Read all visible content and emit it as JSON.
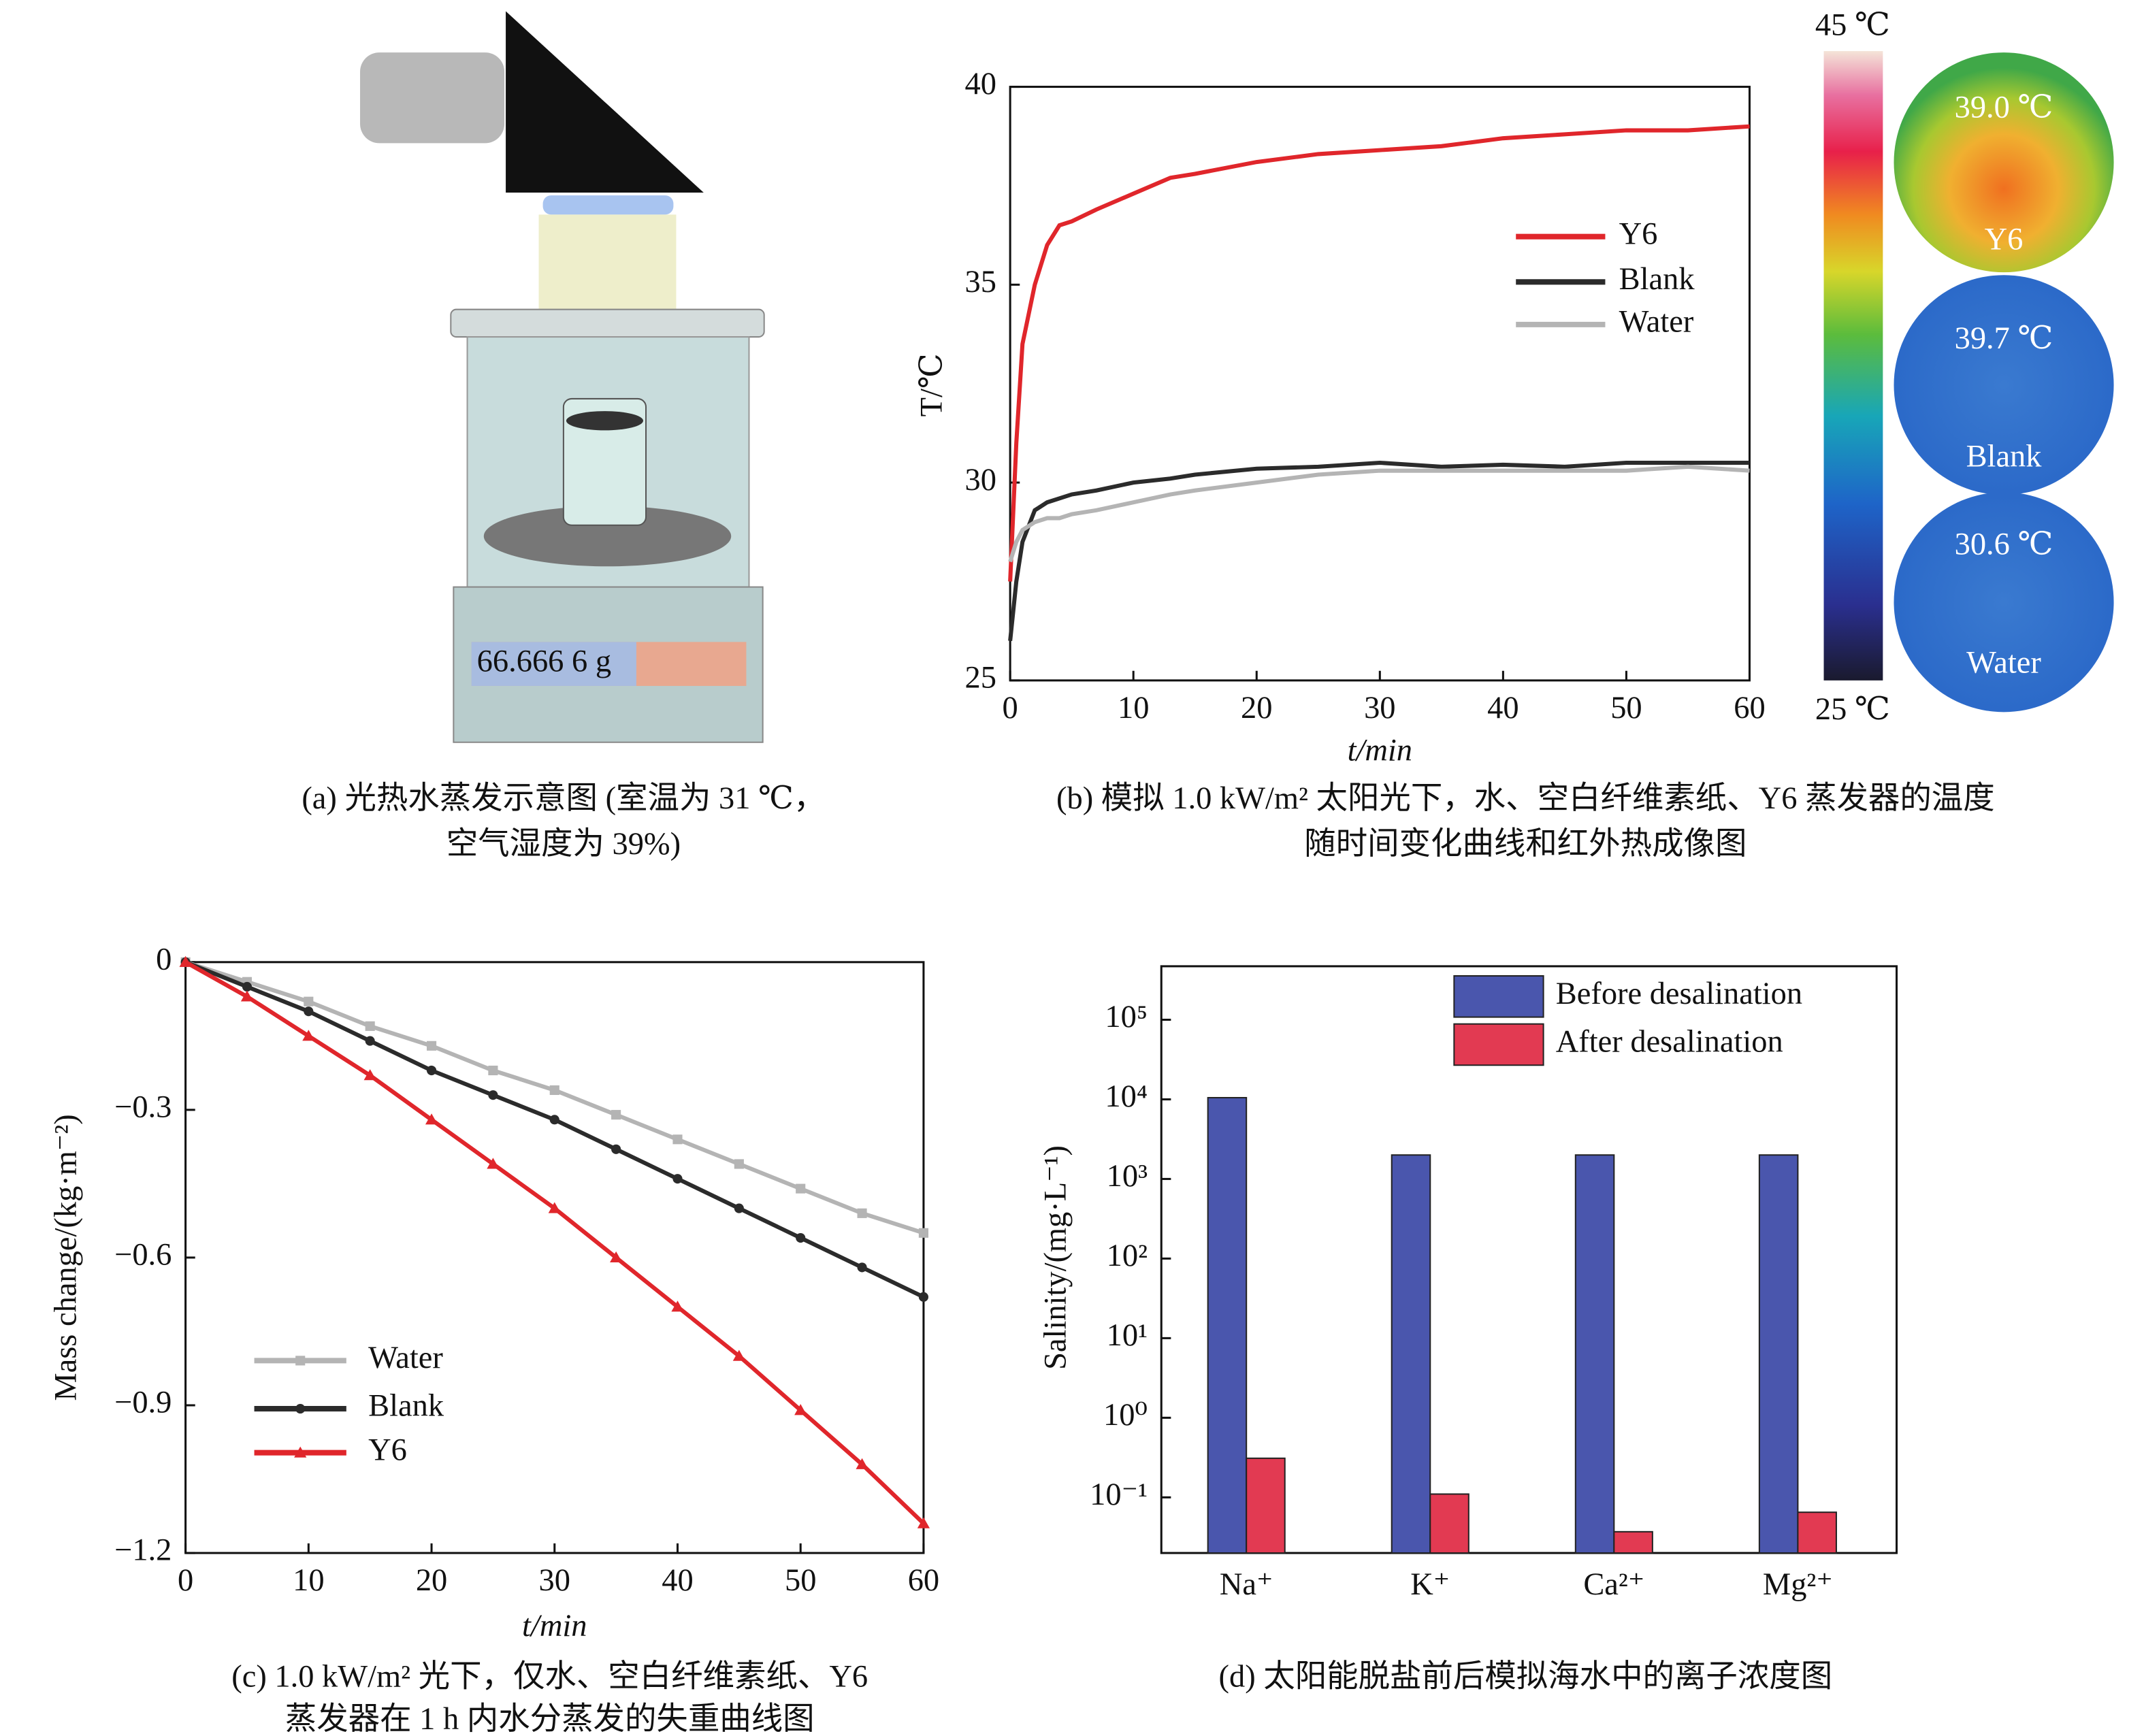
{
  "schematic": {
    "display": "66.666 6 g",
    "caption": [
      "(a) 光热水蒸发示意图 (室温为 31 ℃，",
      "空气湿度为 39%)"
    ]
  },
  "chart_data": [
    {
      "type": "line",
      "xlabel": "t/min",
      "ylabel": "T/℃",
      "xlim": [
        0,
        60
      ],
      "ylim": [
        25,
        40
      ],
      "xticks": [
        0,
        10,
        20,
        30,
        40,
        50,
        60
      ],
      "yticks": [
        25,
        30,
        35,
        40
      ],
      "x": [
        0,
        0.5,
        1,
        2,
        3,
        4,
        5,
        7,
        10,
        13,
        15,
        20,
        25,
        30,
        35,
        40,
        45,
        50,
        55,
        60
      ],
      "series": [
        {
          "name": "Y6",
          "color": "#e0262b",
          "values": [
            27.5,
            31,
            33.5,
            35,
            36,
            36.5,
            36.6,
            36.9,
            37.3,
            37.7,
            37.8,
            38.1,
            38.3,
            38.4,
            38.5,
            38.7,
            38.8,
            38.9,
            38.9,
            39.0
          ]
        },
        {
          "name": "Blank",
          "color": "#2b2b2b",
          "values": [
            26,
            27.5,
            28.5,
            29.3,
            29.5,
            29.6,
            29.7,
            29.8,
            30,
            30.1,
            30.2,
            30.35,
            30.4,
            30.5,
            30.4,
            30.45,
            30.4,
            30.5,
            30.5,
            30.5
          ]
        },
        {
          "name": "Water",
          "color": "#b4b4b4",
          "values": [
            28,
            28.5,
            28.8,
            29,
            29.1,
            29.1,
            29.2,
            29.3,
            29.5,
            29.7,
            29.8,
            30,
            30.2,
            30.3,
            30.3,
            30.3,
            30.3,
            30.3,
            30.4,
            30.3
          ]
        }
      ],
      "colorbar": {
        "max_label": "45 ℃",
        "min_label": "25 ℃"
      },
      "thermal": [
        {
          "temp": "39.0 ℃",
          "label": "Y6"
        },
        {
          "temp": "39.7 ℃",
          "label": "Blank"
        },
        {
          "temp": "30.6 ℃",
          "label": "Water"
        }
      ],
      "caption": [
        "(b) 模拟 1.0 kW/m² 太阳光下，水、空白纤维素纸、Y6 蒸发器的温度",
        "随时间变化曲线和红外热成像图"
      ]
    },
    {
      "type": "line",
      "xlabel": "t/min",
      "ylabel": "Mass change/(kg·m⁻²)",
      "xlim": [
        0,
        60
      ],
      "ylim": [
        -1.2,
        0
      ],
      "xticks": [
        0,
        10,
        20,
        30,
        40,
        50,
        60
      ],
      "yticks": [
        {
          "value": -1.2,
          "label": "−1.2"
        },
        {
          "value": -0.9,
          "label": "−0.9"
        },
        {
          "value": -0.6,
          "label": "−0.6"
        },
        {
          "value": -0.3,
          "label": "−0.3"
        },
        0
      ],
      "x": [
        0,
        5,
        10,
        15,
        20,
        25,
        30,
        35,
        40,
        45,
        50,
        55,
        60
      ],
      "series": [
        {
          "name": "Water",
          "color": "#b4b4b4",
          "marker": "square",
          "values": [
            0,
            -0.04,
            -0.08,
            -0.13,
            -0.17,
            -0.22,
            -0.26,
            -0.31,
            -0.36,
            -0.41,
            -0.46,
            -0.51,
            -0.55
          ]
        },
        {
          "name": "Blank",
          "color": "#2b2b2b",
          "marker": "circle",
          "values": [
            0,
            -0.05,
            -0.1,
            -0.16,
            -0.22,
            -0.27,
            -0.32,
            -0.38,
            -0.44,
            -0.5,
            -0.56,
            -0.62,
            -0.68
          ]
        },
        {
          "name": "Y6",
          "color": "#e0262b",
          "marker": "triangle",
          "values": [
            0,
            -0.07,
            -0.15,
            -0.23,
            -0.32,
            -0.41,
            -0.5,
            -0.6,
            -0.7,
            -0.8,
            -0.91,
            -1.02,
            -1.14
          ]
        }
      ],
      "caption": [
        "(c) 1.0 kW/m² 光下，仅水、空白纤维素纸、Y6",
        "蒸发器在 1 h 内水分蒸发的失重曲线图"
      ]
    },
    {
      "type": "bar",
      "log_scale": true,
      "ylabel": "Salinity/(mg·L⁻¹)",
      "categories": [
        "Na⁺",
        "K⁺",
        "Ca²⁺",
        "Mg²⁺"
      ],
      "ylim": [
        0.02,
        470000
      ],
      "yticks": [
        {
          "value": 0.1,
          "label": "10⁻¹"
        },
        {
          "value": 1,
          "label": "10⁰"
        },
        {
          "value": 10,
          "label": "10¹"
        },
        {
          "value": 100,
          "label": "10²"
        },
        {
          "value": 1000,
          "label": "10³"
        },
        {
          "value": 10000,
          "label": "10⁴"
        },
        {
          "value": 100000,
          "label": "10⁵"
        }
      ],
      "series": [
        {
          "name": "Before desalination",
          "color": "#4a56ad",
          "values": [
            10500,
            2000,
            2000,
            2000
          ]
        },
        {
          "name": "After desalination",
          "color": "#e23a52",
          "values": [
            0.31,
            0.11,
            0.037,
            0.065
          ]
        }
      ],
      "caption": [
        "(d) 太阳能脱盐前后模拟海水中的离子浓度图"
      ]
    }
  ]
}
